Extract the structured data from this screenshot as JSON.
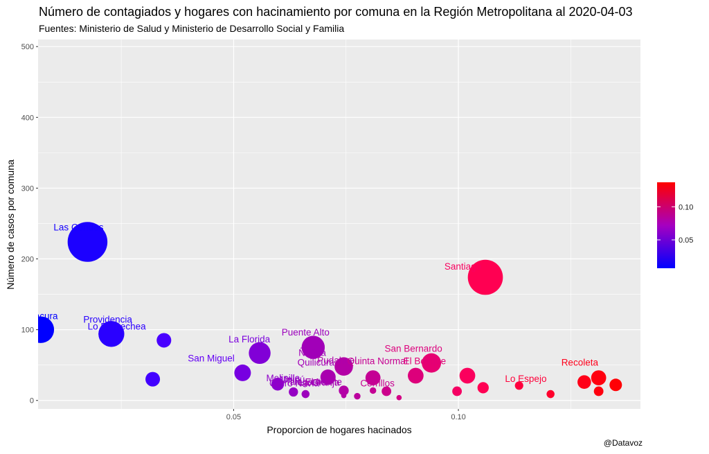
{
  "title": "Número de contagiados y hogares con hacinamiento por comuna en la Región Metropolitana al 2020-04-03",
  "subtitle": "Fuentes: Ministerio de Salud y Ministerio de Desarrollo Social y Familia",
  "caption": "@Datavoz",
  "chart_data": {
    "type": "scatter",
    "xlabel": "Proporcion de hogares hacinados",
    "ylabel": "Número de casos por comuna",
    "xlim": [
      0.0065,
      0.1405
    ],
    "ylim": [
      -12,
      510
    ],
    "x_ticks": [
      0.05,
      0.1
    ],
    "x_tick_labels": [
      "0.05",
      "0.10"
    ],
    "y_ticks": [
      0,
      100,
      200,
      300,
      400,
      500
    ],
    "y_tick_labels": [
      "0",
      "100",
      "200",
      "300",
      "400",
      "500"
    ],
    "grid": true,
    "color_scale": {
      "low": "#0000ff",
      "high": "#ff0000",
      "min": 0.0071,
      "max": 0.137,
      "ticks": [
        0.05,
        0.1
      ],
      "tick_labels": [
        "0.05",
        "0.10"
      ],
      "position": "right"
    },
    "points": [
      {
        "label": "Vitacura",
        "x": 0.0071,
        "y": 100,
        "size": 100
      },
      {
        "label": "Las Condes",
        "x": 0.0175,
        "y": 224,
        "size": 224
      },
      {
        "label": "Providencia",
        "x": 0.0228,
        "y": 94,
        "size": 94
      },
      {
        "label": "Lo Barnechea",
        "x": 0.0228,
        "y": 94,
        "size": 94
      },
      {
        "label": "",
        "x": 0.0345,
        "y": 85,
        "size": 30
      },
      {
        "label": "",
        "x": 0.032,
        "y": 30,
        "size": 30
      },
      {
        "label": "San Miguel",
        "x": 0.052,
        "y": 39,
        "size": 39
      },
      {
        "label": "La Florida",
        "x": 0.0558,
        "y": 67,
        "size": 67
      },
      {
        "label": "Puente Alto",
        "x": 0.0677,
        "y": 75,
        "size": 75
      },
      {
        "label": "Ñuñoa",
        "x": 0.0677,
        "y": 75,
        "size": 75
      },
      {
        "label": "",
        "x": 0.0598,
        "y": 23,
        "size": 23
      },
      {
        "label": "",
        "x": 0.0633,
        "y": 12,
        "size": 12
      },
      {
        "label": "",
        "x": 0.066,
        "y": 9,
        "size": 9
      },
      {
        "label": "Quilicura",
        "x": 0.071,
        "y": 33,
        "size": 33
      },
      {
        "label": "Pudahuel",
        "x": 0.0745,
        "y": 48,
        "size": 48
      },
      {
        "label": "Quinta Normal",
        "x": 0.081,
        "y": 32,
        "size": 32
      },
      {
        "label": "",
        "x": 0.0745,
        "y": 14,
        "size": 14
      },
      {
        "label": "",
        "x": 0.0745,
        "y": 7,
        "size": 4
      },
      {
        "label": "",
        "x": 0.0775,
        "y": 6,
        "size": 6
      },
      {
        "label": "",
        "x": 0.081,
        "y": 14,
        "size": 6
      },
      {
        "label": "",
        "x": 0.084,
        "y": 13,
        "size": 13
      },
      {
        "label": "",
        "x": 0.0868,
        "y": 4,
        "size": 4
      },
      {
        "label": "San Bernardo",
        "x": 0.094,
        "y": 53,
        "size": 53
      },
      {
        "label": "",
        "x": 0.0905,
        "y": 35,
        "size": 35
      },
      {
        "label": "El Bosque",
        "x": 0.102,
        "y": 35,
        "size": 35
      },
      {
        "label": "",
        "x": 0.0997,
        "y": 13,
        "size": 13
      },
      {
        "label": "",
        "x": 0.1055,
        "y": 18,
        "size": 18
      },
      {
        "label": "Santiago",
        "x": 0.106,
        "y": 174,
        "size": 174
      },
      {
        "label": "Lo Espejo",
        "x": 0.1135,
        "y": 21,
        "size": 10
      },
      {
        "label": "",
        "x": 0.1205,
        "y": 9,
        "size": 9
      },
      {
        "label": "Recoleta",
        "x": 0.1312,
        "y": 32,
        "size": 32
      },
      {
        "label": "",
        "x": 0.128,
        "y": 26,
        "size": 26
      },
      {
        "label": "",
        "x": 0.1312,
        "y": 13,
        "size": 13
      },
      {
        "label": "",
        "x": 0.135,
        "y": 22,
        "size": 22
      }
    ],
    "labels": [
      {
        "text": "Vitacura",
        "x": 0.0071,
        "y": 115
      },
      {
        "text": "Las Condes",
        "x": 0.0155,
        "y": 240
      },
      {
        "text": "Providencia",
        "x": 0.022,
        "y": 110
      },
      {
        "text": "Lo Barnechea",
        "x": 0.024,
        "y": 100
      },
      {
        "text": "La Florida",
        "x": 0.0535,
        "y": 82
      },
      {
        "text": "San Miguel",
        "x": 0.045,
        "y": 55
      },
      {
        "text": "Puente Alto",
        "x": 0.066,
        "y": 92
      },
      {
        "text": "Ñuñoa",
        "x": 0.0675,
        "y": 63
      },
      {
        "text": "Quilicura",
        "x": 0.0683,
        "y": 49
      },
      {
        "text": "Pudahuel",
        "x": 0.073,
        "y": 52
      },
      {
        "text": "Quinta Normal",
        "x": 0.082,
        "y": 51
      },
      {
        "text": "San Bernardo",
        "x": 0.09,
        "y": 69
      },
      {
        "text": "El Bosque",
        "x": 0.0925,
        "y": 51
      },
      {
        "text": "Santiago",
        "x": 0.101,
        "y": 185
      },
      {
        "text": "Lo Espejo",
        "x": 0.115,
        "y": 26
      },
      {
        "text": "Recoleta",
        "x": 0.127,
        "y": 49
      },
      {
        "text": "Maipú",
        "x": 0.063,
        "y": 25
      },
      {
        "text": "Melipilla",
        "x": 0.061,
        "y": 27
      },
      {
        "text": "Cerro Navia",
        "x": 0.0635,
        "y": 20
      },
      {
        "text": "Talagante",
        "x": 0.066,
        "y": 22
      },
      {
        "text": "La Granja",
        "x": 0.069,
        "y": 21
      },
      {
        "text": "El Monte",
        "x": 0.07,
        "y": 22
      },
      {
        "text": "Cerrillos",
        "x": 0.082,
        "y": 20
      }
    ]
  }
}
